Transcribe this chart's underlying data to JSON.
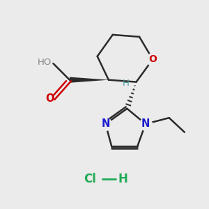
{
  "bg_color": "#ebebeb",
  "bond_color": "#2a2a2a",
  "oxygen_color": "#cc0000",
  "nitrogen_color": "#1a1acc",
  "hcl_color": "#22aa55",
  "stereo_H_color": "#4a9a9a",
  "ho_color": "#888888",
  "figsize": [
    3.0,
    3.0
  ],
  "dpi": 100,
  "xlim": [
    0,
    10
  ],
  "ylim": [
    0,
    10
  ]
}
